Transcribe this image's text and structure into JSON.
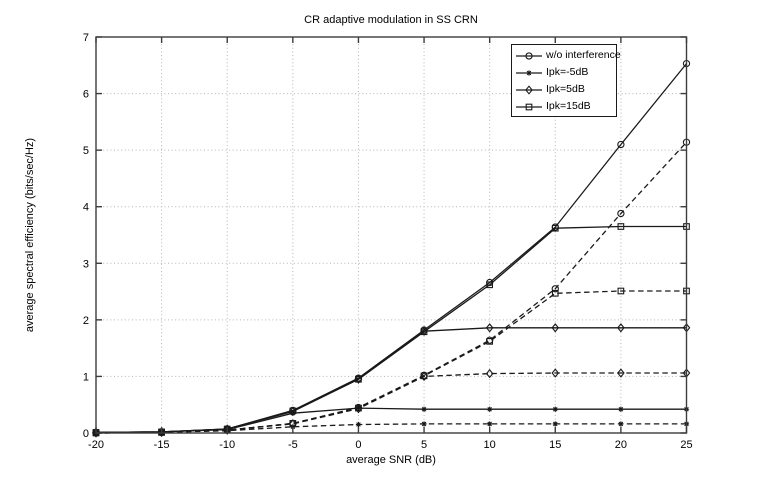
{
  "figure": {
    "background": "#ffffff",
    "axis_color": "#3c3c3c",
    "grid_color": "#b3b3b3",
    "line_color": "#1a1a1a",
    "legend_border_color": "#1a1a1a"
  },
  "chart_data": {
    "type": "line",
    "title": "CR adaptive modulation in SS CRN",
    "xlabel": "average SNR (dB)",
    "ylabel": "average spectral efficiency (bits/sec/Hz)",
    "xlim": [
      -20,
      25
    ],
    "ylim": [
      0,
      7
    ],
    "xticks": [
      -20,
      -15,
      -10,
      -5,
      0,
      5,
      10,
      15,
      20,
      25
    ],
    "yticks": [
      0,
      1,
      2,
      3,
      4,
      5,
      6,
      7
    ],
    "grid": "dotted",
    "legend": {
      "position": "top-right",
      "entries": [
        {
          "label": "w/o interference",
          "marker": "circle"
        },
        {
          "label": "Ipk=-5dB",
          "marker": "asterisk"
        },
        {
          "label": "Ipk=5dB",
          "marker": "diamond"
        },
        {
          "label": "Ipk=15dB",
          "marker": "square"
        }
      ]
    },
    "x": [
      -20,
      -15,
      -10,
      -5,
      0,
      5,
      10,
      15,
      20,
      25
    ],
    "series": [
      {
        "name": "w/o interference (solid)",
        "marker": "circle",
        "linestyle": "solid",
        "values": [
          0.01,
          0.02,
          0.07,
          0.4,
          0.97,
          1.82,
          2.66,
          3.64,
          5.1,
          6.53
        ]
      },
      {
        "name": "Ipk=15dB (solid)",
        "marker": "square",
        "linestyle": "solid",
        "values": [
          0.01,
          0.02,
          0.07,
          0.39,
          0.95,
          1.79,
          2.62,
          3.62,
          3.65,
          3.65
        ]
      },
      {
        "name": "Ipk=5dB (solid)",
        "marker": "diamond",
        "linestyle": "solid",
        "values": [
          0.01,
          0.02,
          0.07,
          0.38,
          0.95,
          1.8,
          1.86,
          1.86,
          1.86,
          1.86
        ]
      },
      {
        "name": "Ipk=-5dB (solid)",
        "marker": "asterisk",
        "linestyle": "solid",
        "values": [
          0.01,
          0.02,
          0.06,
          0.35,
          0.44,
          0.42,
          0.42,
          0.42,
          0.42,
          0.42
        ]
      },
      {
        "name": "w/o interference (dashed)",
        "marker": "circle",
        "linestyle": "dashed",
        "values": [
          0.0,
          0.01,
          0.05,
          0.17,
          0.45,
          1.02,
          1.64,
          2.55,
          3.88,
          5.14
        ]
      },
      {
        "name": "Ipk=15dB (dashed)",
        "marker": "square",
        "linestyle": "dashed",
        "values": [
          0.0,
          0.01,
          0.05,
          0.17,
          0.44,
          1.01,
          1.62,
          2.47,
          2.51,
          2.51
        ]
      },
      {
        "name": "Ipk=5dB (dashed)",
        "marker": "diamond",
        "linestyle": "dashed",
        "values": [
          0.0,
          0.01,
          0.05,
          0.16,
          0.43,
          1.0,
          1.05,
          1.06,
          1.06,
          1.06
        ]
      },
      {
        "name": "Ipk=-5dB (dashed)",
        "marker": "asterisk",
        "linestyle": "dashed",
        "values": [
          0.0,
          0.01,
          0.04,
          0.11,
          0.15,
          0.16,
          0.16,
          0.16,
          0.16,
          0.16
        ]
      }
    ]
  }
}
